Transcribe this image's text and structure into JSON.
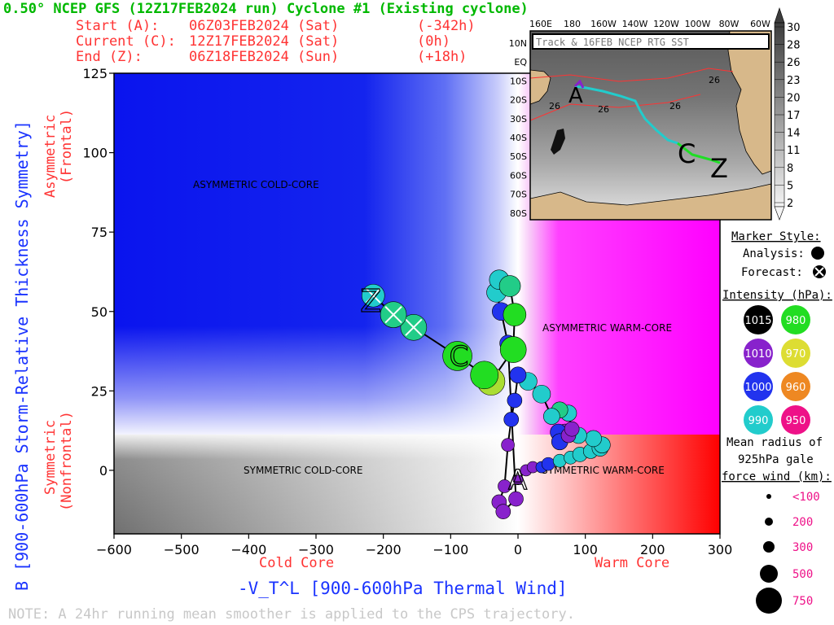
{
  "title": "0.50° NCEP GFS (12Z17FEB2024 run) Cyclone #1 (Existing cyclone)",
  "header_lines": [
    {
      "label": "Start (A):",
      "date": "06Z03FEB2024 (Sat)",
      "offset": "(-342h)"
    },
    {
      "label": "Current (C):",
      "date": "12Z17FEB2024 (Sat)",
      "offset": "(0h)"
    },
    {
      "label": "End (Z):",
      "date": "06Z18FEB2024 (Sun)",
      "offset": "(+18h)"
    }
  ],
  "note": "NOTE:  A 24hr running mean smoother is applied to the CPS trajectory.",
  "quadrant_labels": {
    "asym_cold": "ASYMMETRIC COLD-CORE",
    "asym_warm": "ASYMMETRIC WARM-CORE",
    "sym_cold": "SYMMETRIC COLD-CORE",
    "sym_warm": "SYMMETRIC WARM-CORE"
  },
  "yaxis_side_labels": {
    "asym_1": "Asymmetric",
    "asym_2": "(Frontal)",
    "sym_1": "Symmetric",
    "sym_2": "(Nonfrontal)"
  },
  "xaxis_side_labels": {
    "cold": "Cold Core",
    "warm": "Warm Core"
  },
  "legend": {
    "marker_title": "Marker Style:",
    "analysis": "Analysis:",
    "forecast": "Forecast:",
    "intensity_title": "Intensity (hPa):",
    "intensity": [
      {
        "value": "1015",
        "color": "#000000"
      },
      {
        "value": "980",
        "color": "#22dd22"
      },
      {
        "value": "1010",
        "color": "#8822cc"
      },
      {
        "value": "970",
        "color": "#dddd33"
      },
      {
        "value": "1000",
        "color": "#2233ee"
      },
      {
        "value": "960",
        "color": "#ee8822"
      },
      {
        "value": "990",
        "color": "#22cccc"
      },
      {
        "value": "950",
        "color": "#ee1188"
      }
    ],
    "radius_title_1": "Mean radius of",
    "radius_title_2": "925hPa gale",
    "radius_title_3": "force wind (km):",
    "radius": [
      "<100",
      "200",
      "300",
      "500",
      "750"
    ]
  },
  "inset": {
    "title": "Track & 16FEB NCEP RTG SST",
    "lon_labels": [
      "160E",
      "180",
      "160W",
      "140W",
      "120W",
      "100W",
      "80W",
      "60W"
    ],
    "lat_labels": [
      "10N",
      "EQ",
      "10S",
      "20S",
      "30S",
      "40S",
      "50S",
      "60S",
      "70S",
      "80S"
    ],
    "sst_labels": [
      "26",
      "26",
      "26",
      "26"
    ],
    "track_labels": [
      "A",
      "C",
      "Z"
    ],
    "colorbar_ticks": [
      "30",
      "28",
      "26",
      "23",
      "20",
      "17",
      "14",
      "11",
      "8",
      "5",
      "2"
    ]
  },
  "chart_data": {
    "type": "scatter",
    "xlabel": "-V_T^L [900-600hPa Thermal Wind]",
    "ylabel": "B [900-600hPa Storm-Relative Thickness Symmetry]",
    "xlim": [
      -600,
      300
    ],
    "ylim": [
      -20,
      125
    ],
    "xticks": [
      "−600",
      "−500",
      "−400",
      "−300",
      "−200",
      "−100",
      "0",
      "100",
      "200",
      "300"
    ],
    "yticks": [
      "125",
      "100",
      "75",
      "50",
      "25",
      "0"
    ],
    "thresholds": {
      "x": 0,
      "y": 10
    },
    "track_labels": {
      "start": "A",
      "current": "C",
      "end": "Z"
    },
    "points": [
      {
        "x": 0,
        "y": -3,
        "c": "#8822cc",
        "s": 6,
        "f": 0
      },
      {
        "x": 12,
        "y": 0,
        "c": "#8822cc",
        "s": 7,
        "f": 0
      },
      {
        "x": 22,
        "y": 1,
        "c": "#8822cc",
        "s": 7,
        "f": 0
      },
      {
        "x": 35,
        "y": 1,
        "c": "#2233ee",
        "s": 7,
        "f": 0
      },
      {
        "x": 45,
        "y": 2,
        "c": "#2233ee",
        "s": 8,
        "f": 0
      },
      {
        "x": 62,
        "y": 3,
        "c": "#22cccc",
        "s": 8,
        "f": 0
      },
      {
        "x": 78,
        "y": 4,
        "c": "#22cccc",
        "s": 8,
        "f": 0
      },
      {
        "x": 92,
        "y": 5,
        "c": "#22cccc",
        "s": 9,
        "f": 0
      },
      {
        "x": 108,
        "y": 6,
        "c": "#22cccc",
        "s": 9,
        "f": 0
      },
      {
        "x": 122,
        "y": 7,
        "c": "#22cccc",
        "s": 10,
        "f": 0
      },
      {
        "x": 125,
        "y": 8,
        "c": "#22cccc",
        "s": 10,
        "f": 0
      },
      {
        "x": 112,
        "y": 10,
        "c": "#22cccc",
        "s": 10,
        "f": 0
      },
      {
        "x": 90,
        "y": 11,
        "c": "#22cccc",
        "s": 10,
        "f": 0
      },
      {
        "x": 70,
        "y": 12,
        "c": "#8822cc",
        "s": 10,
        "f": 0
      },
      {
        "x": 60,
        "y": 12,
        "c": "#2233ee",
        "s": 10,
        "f": 0
      },
      {
        "x": 62,
        "y": 9,
        "c": "#2233ee",
        "s": 10,
        "f": 0
      },
      {
        "x": 75,
        "y": 11,
        "c": "#8822cc",
        "s": 9,
        "f": 0
      },
      {
        "x": 80,
        "y": 13,
        "c": "#8822cc",
        "s": 9,
        "f": 0
      },
      {
        "x": 75,
        "y": 18,
        "c": "#22cccc",
        "s": 10,
        "f": 0
      },
      {
        "x": 62,
        "y": 19,
        "c": "#22cc88",
        "s": 10,
        "f": 0
      },
      {
        "x": 50,
        "y": 17,
        "c": "#22cccc",
        "s": 10,
        "f": 0
      },
      {
        "x": 35,
        "y": 24,
        "c": "#22cccc",
        "s": 11,
        "f": 0
      },
      {
        "x": 15,
        "y": 28,
        "c": "#22cccc",
        "s": 11,
        "f": 0
      },
      {
        "x": 0,
        "y": 30,
        "c": "#2233ee",
        "s": 10,
        "f": 0
      },
      {
        "x": -5,
        "y": 22,
        "c": "#2233ee",
        "s": 9,
        "f": 0
      },
      {
        "x": -10,
        "y": 16,
        "c": "#2233ee",
        "s": 9,
        "f": 0
      },
      {
        "x": -15,
        "y": 8,
        "c": "#8822cc",
        "s": 8,
        "f": 0
      },
      {
        "x": -20,
        "y": -5,
        "c": "#8822cc",
        "s": 8,
        "f": 0
      },
      {
        "x": -28,
        "y": -10,
        "c": "#8822cc",
        "s": 9,
        "f": 0
      },
      {
        "x": -22,
        "y": -13,
        "c": "#8822cc",
        "s": 9,
        "f": 0
      },
      {
        "x": -3,
        "y": -9,
        "c": "#8822cc",
        "s": 9,
        "f": 0
      },
      {
        "x": -15,
        "y": 40,
        "c": "#2233ee",
        "s": 10,
        "f": 0
      },
      {
        "x": -25,
        "y": 50,
        "c": "#2233ee",
        "s": 11,
        "f": 0
      },
      {
        "x": -32,
        "y": 56,
        "c": "#22cccc",
        "s": 12,
        "f": 0
      },
      {
        "x": -28,
        "y": 60,
        "c": "#22cccc",
        "s": 12,
        "f": 0
      },
      {
        "x": -12,
        "y": 58,
        "c": "#22cc88",
        "s": 13,
        "f": 0
      },
      {
        "x": -5,
        "y": 49,
        "c": "#22dd22",
        "s": 14,
        "f": 0
      },
      {
        "x": -7,
        "y": 38,
        "c": "#22dd22",
        "s": 16,
        "f": 0
      },
      {
        "x": -40,
        "y": 28,
        "c": "#aadd33",
        "s": 17,
        "f": 0
      },
      {
        "x": -50,
        "y": 30,
        "c": "#22dd22",
        "s": 17,
        "f": 0
      },
      {
        "x": -90,
        "y": 36,
        "c": "#22dd22",
        "s": 18,
        "f": 0
      },
      {
        "x": -155,
        "y": 45,
        "c": "#22cc88",
        "s": 16,
        "f": 1
      },
      {
        "x": -185,
        "y": 49,
        "c": "#22cc88",
        "s": 16,
        "f": 1
      },
      {
        "x": -215,
        "y": 55,
        "c": "#22cccc",
        "s": 14,
        "f": 1
      }
    ]
  }
}
